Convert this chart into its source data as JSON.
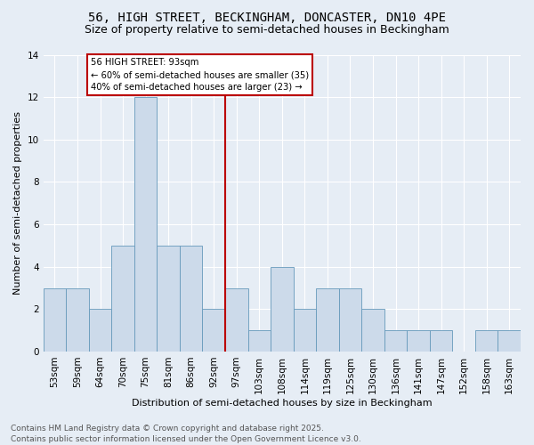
{
  "title_line1": "56, HIGH STREET, BECKINGHAM, DONCASTER, DN10 4PE",
  "title_line2": "Size of property relative to semi-detached houses in Beckingham",
  "xlabel": "Distribution of semi-detached houses by size in Beckingham",
  "ylabel": "Number of semi-detached properties",
  "categories": [
    "53sqm",
    "59sqm",
    "64sqm",
    "70sqm",
    "75sqm",
    "81sqm",
    "86sqm",
    "92sqm",
    "97sqm",
    "103sqm",
    "108sqm",
    "114sqm",
    "119sqm",
    "125sqm",
    "130sqm",
    "136sqm",
    "141sqm",
    "147sqm",
    "152sqm",
    "158sqm",
    "163sqm"
  ],
  "values": [
    3,
    3,
    2,
    5,
    12,
    5,
    5,
    2,
    3,
    1,
    4,
    2,
    3,
    3,
    2,
    1,
    1,
    1,
    0,
    1,
    1
  ],
  "bar_color": "#ccdaea",
  "bar_edge_color": "#6699bb",
  "vline_index": 7.5,
  "vline_color": "#bb0000",
  "annotation_text": "56 HIGH STREET: 93sqm\n← 60% of semi-detached houses are smaller (35)\n40% of semi-detached houses are larger (23) →",
  "annotation_box_color": "#ffffff",
  "annotation_box_edge": "#bb0000",
  "ylim": [
    0,
    14
  ],
  "yticks": [
    0,
    2,
    4,
    6,
    8,
    10,
    12,
    14
  ],
  "footer": "Contains HM Land Registry data © Crown copyright and database right 2025.\nContains public sector information licensed under the Open Government Licence v3.0.",
  "bg_color": "#e6edf5",
  "plot_bg_color": "#e6edf5",
  "grid_color": "#ffffff",
  "title_fontsize": 10,
  "subtitle_fontsize": 9,
  "label_fontsize": 8,
  "tick_fontsize": 7.5,
  "footer_fontsize": 6.5
}
